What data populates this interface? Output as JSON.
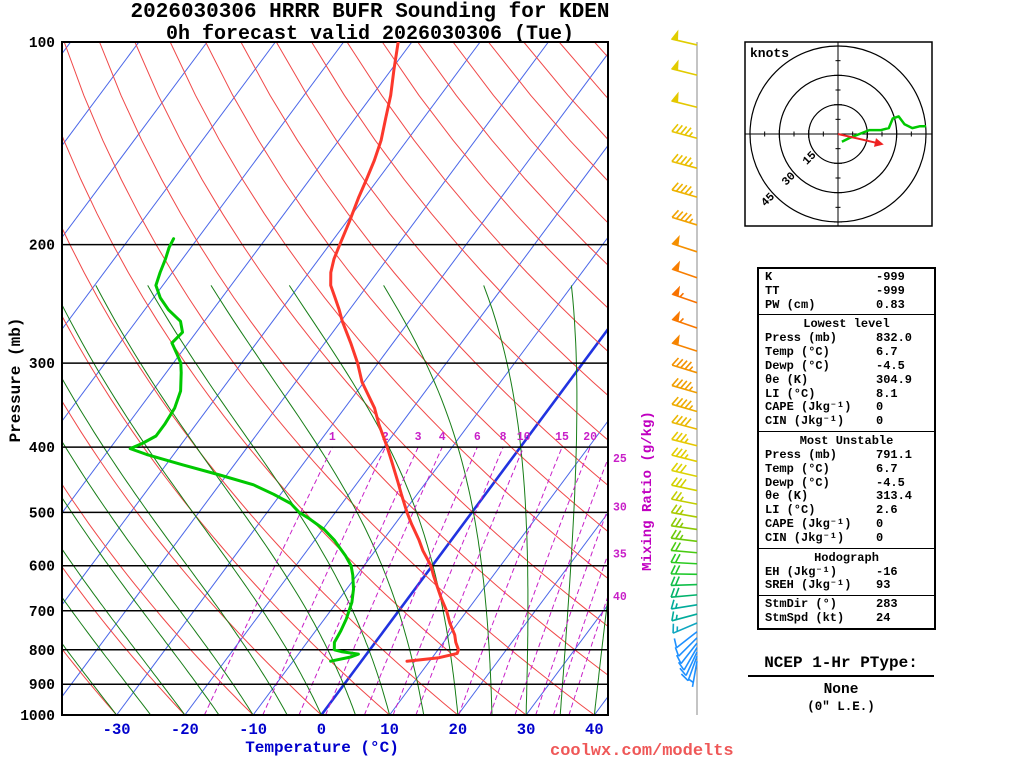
{
  "title": {
    "line1": "2026030306 HRRR BUFR Sounding for KDEN",
    "line2": "0h forecast valid 2026030306 (Tue)"
  },
  "watermark": "coolwx.com/modelts",
  "axes": {
    "pressure_label": "Pressure (mb)",
    "temperature_label": "Temperature (°C)",
    "mixing_ratio_label": "Mixing Ratio (g/kg)",
    "pressure_ticks": [
      100,
      200,
      300,
      400,
      500,
      600,
      700,
      800,
      900,
      1000
    ],
    "temperature_ticks": [
      -30,
      -20,
      -10,
      0,
      10,
      20,
      30,
      40
    ]
  },
  "chart_data": [
    {
      "type": "skewt_logp",
      "pressure_range_mb": [
        100,
        1000
      ],
      "temp_axis_range_c": [
        -38,
        42
      ],
      "skew_ratio": 0.743,
      "isotherm_step_c": 10,
      "dry_adiabat_step_k": 10,
      "moist_adiabat_step_c": 5,
      "mixing_ratio_lines_gkg": [
        1,
        2,
        3,
        4,
        6,
        8,
        10,
        15,
        20,
        25,
        30,
        35,
        40
      ],
      "mixing_ratio_label_pressure_mb": 400,
      "temperature_profile_p_t": [
        [
          832,
          6.7
        ],
        [
          822,
          11.0
        ],
        [
          810,
          13.2
        ],
        [
          800,
          13.0
        ],
        [
          780,
          11.8
        ],
        [
          760,
          10.8
        ],
        [
          730,
          8.8
        ],
        [
          700,
          7.0
        ],
        [
          670,
          4.8
        ],
        [
          650,
          3.4
        ],
        [
          620,
          1.2
        ],
        [
          600,
          -0.2
        ],
        [
          570,
          -3.0
        ],
        [
          550,
          -4.7
        ],
        [
          520,
          -7.6
        ],
        [
          500,
          -9.5
        ],
        [
          470,
          -12.3
        ],
        [
          450,
          -14.2
        ],
        [
          420,
          -17.3
        ],
        [
          400,
          -19.5
        ],
        [
          370,
          -23.2
        ],
        [
          350,
          -25.6
        ],
        [
          320,
          -30.3
        ],
        [
          300,
          -33.0
        ],
        [
          280,
          -36.2
        ],
        [
          260,
          -39.8
        ],
        [
          250,
          -41.5
        ],
        [
          240,
          -43.4
        ],
        [
          230,
          -45.4
        ],
        [
          220,
          -46.8
        ],
        [
          210,
          -47.8
        ],
        [
          200,
          -48.5
        ],
        [
          185,
          -49.6
        ],
        [
          170,
          -50.9
        ],
        [
          160,
          -51.7
        ],
        [
          150,
          -52.6
        ],
        [
          140,
          -53.8
        ],
        [
          130,
          -55.5
        ],
        [
          120,
          -57.3
        ],
        [
          110,
          -59.6
        ],
        [
          100,
          -62.0
        ]
      ],
      "dewpoint_profile_p_t": [
        [
          832,
          -4.5
        ],
        [
          820,
          -2.0
        ],
        [
          812,
          -1.2
        ],
        [
          805,
          -4.0
        ],
        [
          800,
          -5.2
        ],
        [
          780,
          -6.0
        ],
        [
          750,
          -6.3
        ],
        [
          720,
          -6.8
        ],
        [
          700,
          -7.3
        ],
        [
          680,
          -7.8
        ],
        [
          650,
          -9.0
        ],
        [
          620,
          -10.6
        ],
        [
          600,
          -11.9
        ],
        [
          580,
          -13.8
        ],
        [
          560,
          -16.0
        ],
        [
          550,
          -17.1
        ],
        [
          530,
          -19.8
        ],
        [
          510,
          -23.3
        ],
        [
          500,
          -25.3
        ],
        [
          485,
          -27.5
        ],
        [
          470,
          -31.0
        ],
        [
          455,
          -35.0
        ],
        [
          440,
          -41.0
        ],
        [
          425,
          -47.5
        ],
        [
          410,
          -54.0
        ],
        [
          402,
          -57.0
        ],
        [
          395,
          -55.8
        ],
        [
          385,
          -54.6
        ],
        [
          370,
          -54.6
        ],
        [
          350,
          -54.9
        ],
        [
          330,
          -55.9
        ],
        [
          310,
          -57.8
        ],
        [
          300,
          -58.9
        ],
        [
          290,
          -60.6
        ],
        [
          280,
          -62.4
        ],
        [
          270,
          -62.0
        ],
        [
          260,
          -63.5
        ],
        [
          250,
          -66.5
        ],
        [
          240,
          -69.0
        ],
        [
          230,
          -71.0
        ],
        [
          220,
          -71.8
        ],
        [
          210,
          -72.5
        ],
        [
          202,
          -73.2
        ],
        [
          196,
          -73.5
        ]
      ],
      "wind_barbs_p_spd_dir_color": [
        [
          832,
          5,
          190,
          "#1e90ff"
        ],
        [
          818,
          8,
          200,
          "#1e90ff"
        ],
        [
          806,
          10,
          205,
          "#1e90ff"
        ],
        [
          794,
          10,
          210,
          "#1e90ff"
        ],
        [
          782,
          10,
          218,
          "#1e90ff"
        ],
        [
          768,
          10,
          225,
          "#1e90ff"
        ],
        [
          752,
          12,
          232,
          "#1e90ff"
        ],
        [
          730,
          14,
          247,
          "#0fa6c0"
        ],
        [
          708,
          15,
          255,
          "#00ab9b"
        ],
        [
          686,
          16,
          261,
          "#00ab9b"
        ],
        [
          663,
          18,
          265,
          "#00b36b"
        ],
        [
          640,
          19,
          268,
          "#10bf4a"
        ],
        [
          618,
          20,
          271,
          "#1ec82b"
        ],
        [
          596,
          21,
          273,
          "#2aca20"
        ],
        [
          574,
          22,
          275,
          "#49cb12"
        ],
        [
          552,
          23,
          277,
          "#6cca0a"
        ],
        [
          530,
          24,
          278,
          "#8cc905"
        ],
        [
          508,
          25,
          280,
          "#aacb00"
        ],
        [
          486,
          27,
          281,
          "#c2ce00"
        ],
        [
          464,
          29,
          282,
          "#d2d100"
        ],
        [
          442,
          31,
          283,
          "#dcd200"
        ],
        [
          420,
          34,
          284,
          "#e2ce00"
        ],
        [
          398,
          37,
          284,
          "#e6c800"
        ],
        [
          376,
          40,
          285,
          "#eab800"
        ],
        [
          354,
          43,
          286,
          "#eeac00"
        ],
        [
          332,
          45,
          286,
          "#f09e00"
        ],
        [
          310,
          47,
          287,
          "#f39200"
        ],
        [
          288,
          50,
          288,
          "#f68400"
        ],
        [
          266,
          53,
          289,
          "#f87800"
        ],
        [
          244,
          55,
          289,
          "#f87200"
        ],
        [
          224,
          52,
          289,
          "#f87e00"
        ],
        [
          205,
          49,
          288,
          "#f59000"
        ],
        [
          187,
          47,
          287,
          "#f2a200"
        ],
        [
          170,
          45,
          286,
          "#eeb200"
        ],
        [
          154,
          45,
          285,
          "#eabe00"
        ],
        [
          139,
          46,
          285,
          "#e7c400"
        ],
        [
          125,
          48,
          284,
          "#e4c800"
        ],
        [
          112,
          50,
          284,
          "#e2cb00"
        ],
        [
          101,
          52,
          283,
          "#e0cd00"
        ]
      ],
      "colors": {
        "temperature_trace": "#fc382c",
        "dewpoint_trace": "#00c800",
        "isotherm": "#4a66e8",
        "isotherm_zero": "#2133e0",
        "dry_adiabat": "#f04848",
        "moist_adiabat": "#177d17",
        "mixing_ratio": "#c820c8",
        "gridline": "#000000",
        "barb_column_line": "#888888"
      }
    },
    {
      "type": "hodograph",
      "unit": "knots",
      "rings_kt": [
        15,
        30,
        45
      ],
      "trace_uv_kt": [
        [
          2,
          -4
        ],
        [
          6,
          -2
        ],
        [
          11,
          0
        ],
        [
          16,
          2
        ],
        [
          22,
          2
        ],
        [
          26,
          3
        ],
        [
          28,
          8
        ],
        [
          31,
          9
        ],
        [
          34,
          5
        ],
        [
          38,
          3
        ],
        [
          42,
          4
        ],
        [
          45,
          4
        ]
      ],
      "storm_motion_uv_kt": [
        23.4,
        -5.4
      ],
      "storm_dir_deg": 283,
      "storm_speed_kt": 24,
      "trace_color": "#00c800",
      "storm_color": "#ee2222"
    }
  ],
  "stats": {
    "sections": [
      {
        "rows": [
          [
            "K",
            "-999"
          ],
          [
            "TT",
            "-999"
          ],
          [
            "PW (cm)",
            "0.83"
          ]
        ]
      },
      {
        "title": "Lowest level",
        "rows": [
          [
            "Press (mb)",
            "832.0"
          ],
          [
            "Temp (°C)",
            "6.7"
          ],
          [
            "Dewp (°C)",
            "-4.5"
          ],
          [
            "θe (K)",
            "304.9"
          ],
          [
            "LI (°C)",
            "8.1"
          ],
          [
            "CAPE (Jkg⁻¹)",
            "0"
          ],
          [
            "CIN (Jkg⁻¹)",
            "0"
          ]
        ]
      },
      {
        "title": "Most Unstable",
        "rows": [
          [
            "Press (mb)",
            "791.1"
          ],
          [
            "Temp (°C)",
            "6.7"
          ],
          [
            "Dewp (°C)",
            "-4.5"
          ],
          [
            "θe (K)",
            "313.4"
          ],
          [
            "LI (°C)",
            "2.6"
          ],
          [
            "CAPE (Jkg⁻¹)",
            "0"
          ],
          [
            "CIN (Jkg⁻¹)",
            "0"
          ]
        ]
      },
      {
        "title": "Hodograph",
        "rows": [
          [
            "EH (Jkg⁻¹)",
            "-16"
          ],
          [
            "SREH (Jkg⁻¹)",
            "93"
          ]
        ]
      },
      {
        "rows": [
          [
            "StmDir (°)",
            "283"
          ],
          [
            "StmSpd (kt)",
            "24"
          ]
        ]
      }
    ]
  },
  "ptype": {
    "label": "NCEP 1-Hr PType:",
    "value": "None",
    "note": "(0\" L.E.)"
  }
}
